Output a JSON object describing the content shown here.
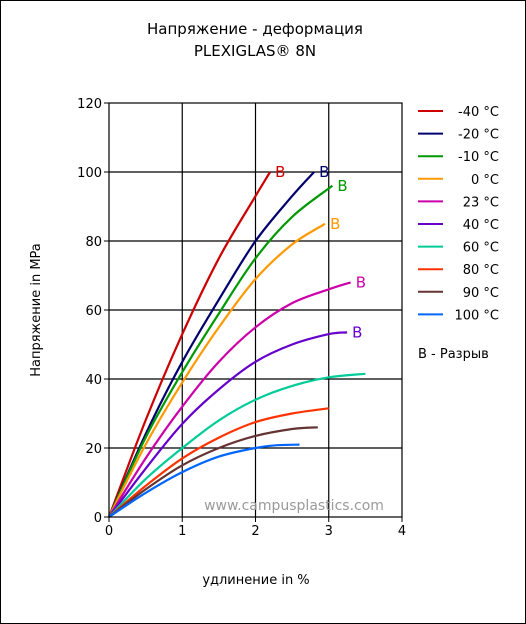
{
  "chart_data": {
    "type": "line",
    "title": "Напряжение - деформация",
    "subtitle": "PLEXIGLAS® 8N",
    "xlabel": "удлинение in %",
    "ylabel": "Напряжение in MPa",
    "xlim": [
      0,
      4
    ],
    "ylim": [
      0,
      120
    ],
    "xticks": [
      "0",
      "1",
      "2",
      "3",
      "4"
    ],
    "yticks": [
      "0",
      "20",
      "40",
      "60",
      "80",
      "100",
      "120"
    ],
    "grid": true,
    "legend_position": "right",
    "legend_note": "B - Разрыв",
    "watermark": "www.campusplastics.com",
    "series": [
      {
        "name": "-40 °C",
        "color": "#cc0000",
        "break_label": "B",
        "x": [
          0,
          0.5,
          1.0,
          1.5,
          2.0,
          2.2
        ],
        "y": [
          0,
          28,
          53,
          75,
          93,
          100
        ]
      },
      {
        "name": "-20 °C",
        "color": "#00006e",
        "break_label": "B",
        "x": [
          0,
          0.5,
          1.0,
          1.5,
          2.0,
          2.5,
          2.8
        ],
        "y": [
          0,
          24,
          45,
          63,
          80,
          93,
          100
        ]
      },
      {
        "name": "-10 °C",
        "color": "#009900",
        "break_label": "B",
        "x": [
          0,
          0.5,
          1.0,
          1.5,
          2.0,
          2.5,
          3.05
        ],
        "y": [
          0,
          23,
          42,
          59,
          75,
          87,
          96
        ]
      },
      {
        "name": "0 °C",
        "color": "#ff9900",
        "break_label": "B",
        "x": [
          0,
          0.5,
          1.0,
          1.5,
          2.0,
          2.5,
          2.95
        ],
        "y": [
          0,
          21,
          39,
          55,
          69,
          79,
          85
        ]
      },
      {
        "name": "23 °C",
        "color": "#cc00aa",
        "break_label": "B",
        "x": [
          0,
          0.5,
          1.0,
          1.5,
          2.0,
          2.5,
          3.0,
          3.3
        ],
        "y": [
          0,
          17,
          32,
          45,
          55,
          62,
          66,
          68
        ]
      },
      {
        "name": "40 °C",
        "color": "#6600cc",
        "break_label": "B",
        "x": [
          0,
          0.5,
          1.0,
          1.5,
          2.0,
          2.5,
          3.0,
          3.25
        ],
        "y": [
          0,
          14,
          27,
          37,
          45,
          50,
          53,
          53.5
        ]
      },
      {
        "name": "60 °C",
        "color": "#00cc99",
        "break_label": "",
        "x": [
          0,
          0.5,
          1.0,
          1.5,
          2.0,
          2.5,
          3.0,
          3.5
        ],
        "y": [
          0,
          11,
          20,
          28,
          34,
          38,
          40.5,
          41.5
        ]
      },
      {
        "name": "80 °C",
        "color": "#ff3300",
        "break_label": "",
        "x": [
          0,
          0.5,
          1.0,
          1.5,
          2.0,
          2.5,
          3.0
        ],
        "y": [
          0,
          9,
          17,
          23,
          27.5,
          30,
          31.5
        ]
      },
      {
        "name": "90 °C",
        "color": "#663333",
        "break_label": "",
        "x": [
          0,
          0.5,
          1.0,
          1.5,
          2.0,
          2.5,
          2.85
        ],
        "y": [
          0,
          8,
          15,
          20,
          23.5,
          25.5,
          26
        ]
      },
      {
        "name": "100 °C",
        "color": "#0066ff",
        "break_label": "",
        "x": [
          0,
          0.5,
          1.0,
          1.5,
          2.0,
          2.3,
          2.6
        ],
        "y": [
          0,
          7,
          13,
          17.5,
          20,
          20.8,
          21
        ]
      }
    ]
  }
}
